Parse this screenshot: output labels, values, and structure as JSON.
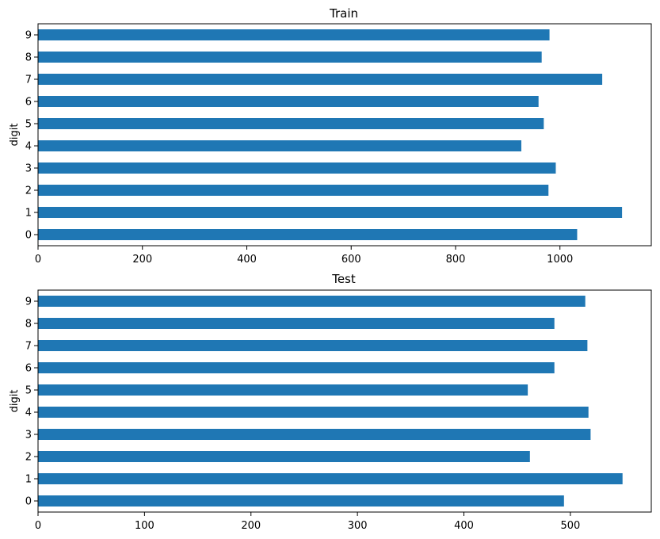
{
  "chart_data": [
    {
      "type": "bar",
      "orientation": "horizontal",
      "title": "Train",
      "ylabel": "digit",
      "xlabel": "",
      "categories": [
        "0",
        "1",
        "2",
        "3",
        "4",
        "5",
        "6",
        "7",
        "8",
        "9"
      ],
      "values": [
        1033,
        1119,
        978,
        992,
        926,
        969,
        959,
        1081,
        965,
        980
      ],
      "xlim": [
        0,
        1175
      ],
      "xticks": [
        0,
        200,
        400,
        600,
        800,
        1000
      ],
      "grid": false,
      "bar_color": "#1f77b4"
    },
    {
      "type": "bar",
      "orientation": "horizontal",
      "title": "Test",
      "ylabel": "digit",
      "xlabel": "",
      "categories": [
        "0",
        "1",
        "2",
        "3",
        "4",
        "5",
        "6",
        "7",
        "8",
        "9"
      ],
      "values": [
        494,
        549,
        462,
        519,
        517,
        460,
        485,
        516,
        485,
        514
      ],
      "xlim": [
        0,
        576
      ],
      "xticks": [
        0,
        100,
        200,
        300,
        400,
        500
      ],
      "grid": false,
      "bar_color": "#1f77b4"
    }
  ]
}
